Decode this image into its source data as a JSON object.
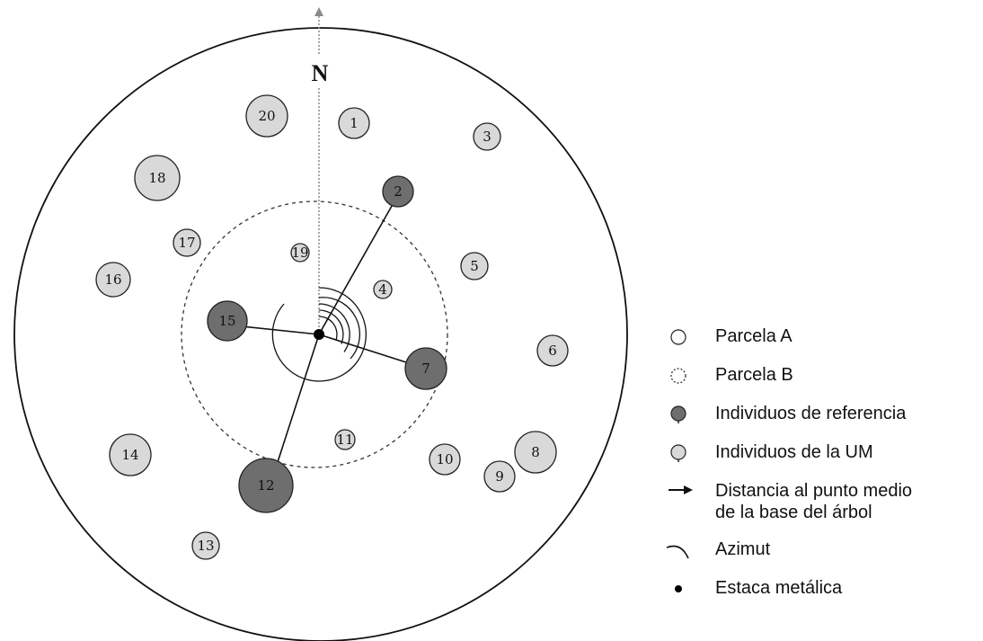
{
  "north_label": "N",
  "trees": [
    {
      "id": "1",
      "kind": "um"
    },
    {
      "id": "2",
      "kind": "ref"
    },
    {
      "id": "3",
      "kind": "um"
    },
    {
      "id": "4",
      "kind": "um"
    },
    {
      "id": "5",
      "kind": "um"
    },
    {
      "id": "6",
      "kind": "um"
    },
    {
      "id": "7",
      "kind": "ref"
    },
    {
      "id": "8",
      "kind": "um"
    },
    {
      "id": "9",
      "kind": "um"
    },
    {
      "id": "10",
      "kind": "um"
    },
    {
      "id": "11",
      "kind": "um"
    },
    {
      "id": "12",
      "kind": "ref"
    },
    {
      "id": "13",
      "kind": "um"
    },
    {
      "id": "14",
      "kind": "um"
    },
    {
      "id": "15",
      "kind": "ref"
    },
    {
      "id": "16",
      "kind": "um"
    },
    {
      "id": "17",
      "kind": "um"
    },
    {
      "id": "18",
      "kind": "um"
    },
    {
      "id": "19",
      "kind": "um"
    },
    {
      "id": "20",
      "kind": "um"
    }
  ],
  "legend": {
    "parcela_a": "Parcela A",
    "parcela_b": "Parcela B",
    "ref": "Individuos de referencia",
    "um": "Individuos de la UM",
    "distancia_1": "Distancia al punto medio",
    "distancia_2": "de la base del árbol",
    "azimut": "Azimut",
    "estaca": "Estaca metálica"
  },
  "colors": {
    "ref_fill": "#6e6e6e",
    "um_fill": "#d9d9d9",
    "stroke": "#222222",
    "north_line": "#8a8a8a"
  }
}
